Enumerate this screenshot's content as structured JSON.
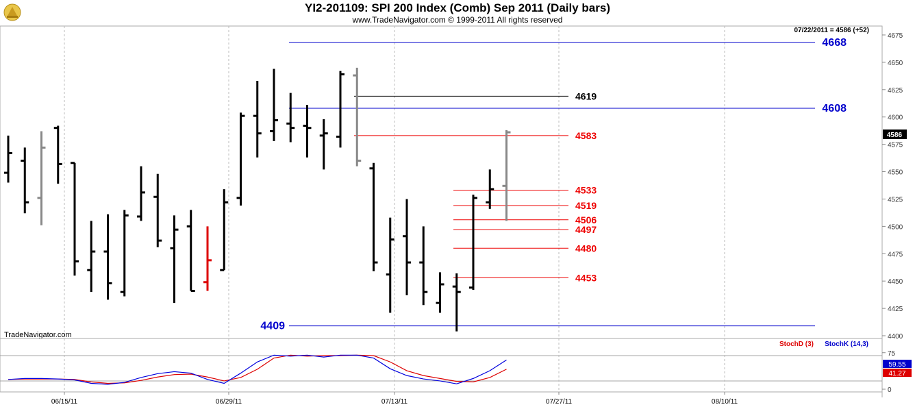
{
  "header": {
    "title": "YI2-201109:  SPI 200 Index (Comb) Sep 2011  (Daily bars)",
    "copyright": "www.TradeNavigator.com © 1999-2011 All rights reserved"
  },
  "main_panel": {
    "last_quote": "07/22/2011 = 4586 (+52)",
    "current_price_tag": "4586",
    "watermark": "TradeNavigator.com"
  },
  "stoch_panel": {
    "legend_d": "StochD (3)",
    "legend_k": "StochK (14,3)",
    "value_k": "59.55",
    "value_d": "41.27"
  },
  "colors": {
    "up_bar": "#000000",
    "last_bars": "#888888",
    "red_bar": "#dd0000",
    "level_blue": "#0000cc",
    "level_red": "#ee0000",
    "level_black": "#000000",
    "stoch_k": "#0000dd",
    "stoch_d": "#dd0000"
  },
  "chart_data": {
    "type": "ohlc",
    "title": "YI2-201109:  SPI 200 Index (Comb) Sep 2011  (Daily bars)",
    "y_ticks": [
      "4400",
      "4425",
      "4450",
      "4475",
      "4500",
      "4525",
      "4550",
      "4575",
      "4600",
      "4625",
      "4650",
      "4675"
    ],
    "ylim": [
      4394,
      4684
    ],
    "x_ticks": [
      "06/15/11",
      "06/29/11",
      "07/13/11",
      "07/27/11",
      "08/10/11"
    ],
    "grid": true,
    "bars": [
      {
        "date": "06/09/11",
        "open": 4549,
        "high": 4583,
        "low": 4540,
        "close": 4567,
        "color": "black"
      },
      {
        "date": "06/10/11",
        "open": 4560,
        "high": 4572,
        "low": 4512,
        "close": 4522,
        "color": "black"
      },
      {
        "date": "06/13/11",
        "open": 4526,
        "high": 4587,
        "low": 4501,
        "close": 4572,
        "color": "gray"
      },
      {
        "date": "06/14/11",
        "open": 4590,
        "high": 4592,
        "low": 4539,
        "close": 4557,
        "color": "black"
      },
      {
        "date": "06/15/11",
        "open": 4558,
        "high": 4558,
        "low": 4455,
        "close": 4468,
        "color": "black"
      },
      {
        "date": "06/16/11",
        "open": 4460,
        "high": 4505,
        "low": 4440,
        "close": 4477,
        "color": "black"
      },
      {
        "date": "06/17/11",
        "open": 4477,
        "high": 4511,
        "low": 4433,
        "close": 4448,
        "color": "black"
      },
      {
        "date": "06/20/11",
        "open": 4440,
        "high": 4515,
        "low": 4436,
        "close": 4510,
        "color": "black"
      },
      {
        "date": "06/21/11",
        "open": 4509,
        "high": 4555,
        "low": 4505,
        "close": 4531,
        "color": "black"
      },
      {
        "date": "06/22/11",
        "open": 4527,
        "high": 4548,
        "low": 4481,
        "close": 4487,
        "color": "black"
      },
      {
        "date": "06/23/11",
        "open": 4480,
        "high": 4510,
        "low": 4430,
        "close": 4497,
        "color": "black"
      },
      {
        "date": "06/24/11",
        "open": 4500,
        "high": 4515,
        "low": 4441,
        "close": 4441,
        "color": "black"
      },
      {
        "date": "06/27/11",
        "open": 4449,
        "high": 4500,
        "low": 4441,
        "close": 4469,
        "color": "red"
      },
      {
        "date": "06/28/11",
        "open": 4460,
        "high": 4534,
        "low": 4460,
        "close": 4522,
        "color": "black"
      },
      {
        "date": "06/29/11",
        "open": 4526,
        "high": 4604,
        "low": 4519,
        "close": 4601,
        "color": "black"
      },
      {
        "date": "06/30/11",
        "open": 4601,
        "high": 4633,
        "low": 4563,
        "close": 4585,
        "color": "black"
      },
      {
        "date": "07/01/11",
        "open": 4587,
        "high": 4644,
        "low": 4578,
        "close": 4597,
        "color": "black"
      },
      {
        "date": "07/04/11",
        "open": 4594,
        "high": 4622,
        "low": 4577,
        "close": 4590,
        "color": "black"
      },
      {
        "date": "07/05/11",
        "open": 4592,
        "high": 4611,
        "low": 4563,
        "close": 4590,
        "color": "black"
      },
      {
        "date": "07/06/11",
        "open": 4583,
        "high": 4598,
        "low": 4552,
        "close": 4585,
        "color": "black"
      },
      {
        "date": "07/07/11",
        "open": 4582,
        "high": 4642,
        "low": 4572,
        "close": 4639,
        "color": "black"
      },
      {
        "date": "07/08/11",
        "open": 4638,
        "high": 4645,
        "low": 4555,
        "close": 4560,
        "color": "gray"
      },
      {
        "date": "07/11/11",
        "open": 4553,
        "high": 4558,
        "low": 4459,
        "close": 4467,
        "color": "black"
      },
      {
        "date": "07/12/11",
        "open": 4456,
        "high": 4508,
        "low": 4421,
        "close": 4488,
        "color": "black"
      },
      {
        "date": "07/13/11",
        "open": 4491,
        "high": 4525,
        "low": 4437,
        "close": 4467,
        "color": "black"
      },
      {
        "date": "07/14/11",
        "open": 4467,
        "high": 4500,
        "low": 4428,
        "close": 4440,
        "color": "black"
      },
      {
        "date": "07/15/11",
        "open": 4430,
        "high": 4458,
        "low": 4421,
        "close": 4447,
        "color": "black"
      },
      {
        "date": "07/18/11",
        "open": 4445,
        "high": 4457,
        "low": 4404,
        "close": 4440,
        "color": "black"
      },
      {
        "date": "07/19/11",
        "open": 4444,
        "high": 4529,
        "low": 4442,
        "close": 4526,
        "color": "black"
      },
      {
        "date": "07/20/11",
        "open": 4522,
        "high": 4552,
        "low": 4516,
        "close": 4534,
        "color": "black"
      },
      {
        "date": "07/21/11",
        "open": 4537,
        "high": 4588,
        "low": 4505,
        "close": 4586,
        "color": "gray"
      }
    ],
    "levels": [
      {
        "value": 4668,
        "label": "4668",
        "color": "blue"
      },
      {
        "value": 4608,
        "label": "4608",
        "color": "blue"
      },
      {
        "value": 4409,
        "label": "4409",
        "color": "blue"
      },
      {
        "value": 4619,
        "label": "4619",
        "color": "black"
      },
      {
        "value": 4583,
        "label": "4583",
        "color": "red"
      },
      {
        "value": 4533,
        "label": "4533",
        "color": "red"
      },
      {
        "value": 4519,
        "label": "4519",
        "color": "red"
      },
      {
        "value": 4506,
        "label": "4506",
        "color": "red"
      },
      {
        "value": 4497,
        "label": "4497",
        "color": "red"
      },
      {
        "value": 4480,
        "label": "4480",
        "color": "red"
      },
      {
        "value": 4453,
        "label": "4453",
        "color": "red"
      }
    ],
    "stochastic": {
      "ylim": [
        0,
        100
      ],
      "y_ticks": [
        "0",
        "75"
      ],
      "k_label": "StochK (14,3)",
      "d_label": "StochD (3)",
      "k_values": [
        20,
        22,
        22,
        21,
        19,
        12,
        10,
        14,
        24,
        32,
        36,
        33,
        20,
        12,
        33,
        56,
        70,
        68,
        70,
        66,
        70,
        70,
        64,
        42,
        28,
        21,
        17,
        11,
        22,
        38,
        60
      ],
      "d_values": [
        20,
        21,
        21,
        21,
        20,
        15,
        12,
        13,
        18,
        25,
        30,
        31,
        25,
        17,
        24,
        41,
        64,
        70,
        68,
        69,
        69,
        70,
        69,
        56,
        38,
        28,
        22,
        16,
        15,
        24,
        41
      ]
    }
  }
}
